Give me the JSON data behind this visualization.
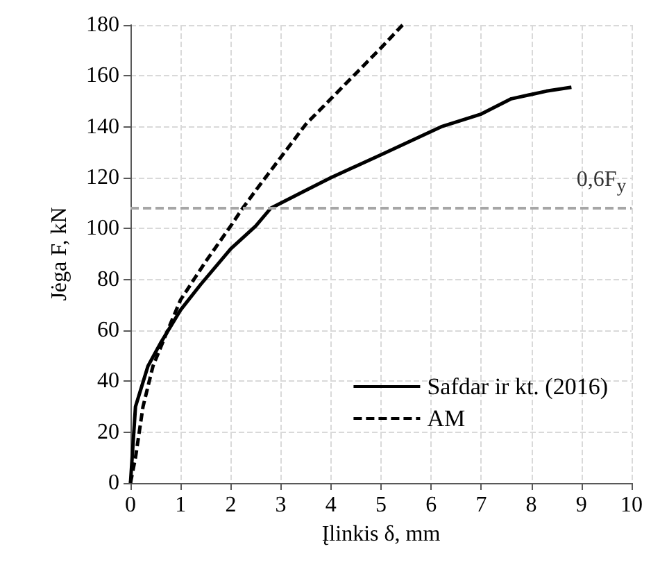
{
  "chart_data": {
    "type": "line",
    "xlabel": "Įlinkis δ, mm",
    "ylabel": "Jėga F, kN",
    "xlim": [
      0,
      10
    ],
    "xticks": [
      0,
      1,
      2,
      3,
      4,
      5,
      6,
      7,
      8,
      9,
      10
    ],
    "ylim": [
      0,
      180
    ],
    "yticks": [
      0,
      20,
      40,
      60,
      80,
      100,
      120,
      140,
      160,
      180
    ],
    "grid": true,
    "legend": "bottom right",
    "marker": "none",
    "series": [
      {
        "name": "Safdar ir kt. (2016)",
        "color": "#000000",
        "line_style": "solid",
        "x": [
          0,
          0.05,
          0.1,
          0.35,
          0.6,
          1,
          1.4,
          2,
          2.5,
          2.8,
          3.5,
          4,
          5,
          6.2,
          7,
          7.6,
          8.3,
          8.8
        ],
        "values": [
          0,
          15,
          30,
          46,
          55,
          68,
          78,
          92,
          101,
          108,
          115,
          120,
          129,
          140,
          145,
          151,
          154,
          155.5
        ]
      },
      {
        "name": "AM",
        "color": "#000000",
        "line_style": "dashed",
        "x": [
          0,
          0.1,
          0.25,
          0.45,
          0.7,
          1,
          1.5,
          2,
          2.24,
          2.5,
          3,
          3.5,
          4,
          4.5,
          5,
          5.43
        ],
        "values": [
          0,
          10,
          30,
          46,
          58,
          72,
          87,
          101,
          108,
          115,
          128,
          141,
          151,
          161,
          171,
          180
        ]
      }
    ],
    "ref_lines": [
      {
        "axis": "y",
        "value": 108,
        "label": "0,6F$_{y}$",
        "color": "#a6a6a6",
        "line_style": "dashed"
      }
    ]
  }
}
